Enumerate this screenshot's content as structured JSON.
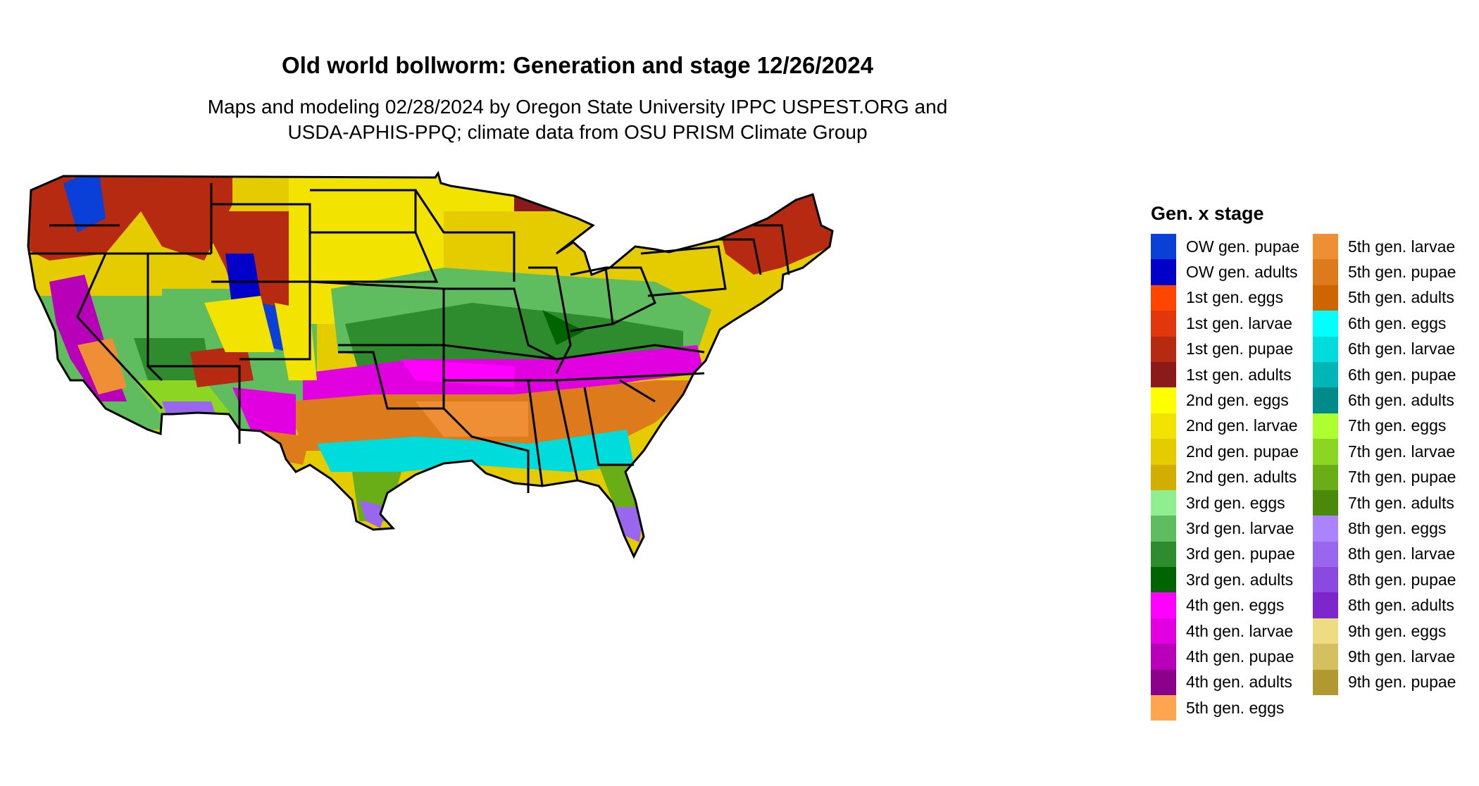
{
  "title": "Old world bollworm: Generation and stage 12/26/2024",
  "subtitle_line1": "Maps and modeling 02/28/2024 by Oregon State University IPPC USPEST.ORG and",
  "subtitle_line2": "USDA-APHIS-PPQ; climate data from OSU PRISM Climate Group",
  "legend": {
    "title": "Gen. x stage",
    "items": [
      {
        "label": "OW gen. pupae",
        "color": "#0a3fd8"
      },
      {
        "label": "OW gen. adults",
        "color": "#0000c8"
      },
      {
        "label": "1st gen. eggs",
        "color": "#ff4500"
      },
      {
        "label": "1st gen. larvae",
        "color": "#e0380c"
      },
      {
        "label": "1st gen. pupae",
        "color": "#b52a10"
      },
      {
        "label": "1st gen. adults",
        "color": "#8b1a1a"
      },
      {
        "label": "2nd gen. eggs",
        "color": "#ffff00"
      },
      {
        "label": "2nd gen. larvae",
        "color": "#f2e400"
      },
      {
        "label": "2nd gen. pupae",
        "color": "#e4cc00"
      },
      {
        "label": "2nd gen. adults",
        "color": "#d1ae00"
      },
      {
        "label": "3rd gen. eggs",
        "color": "#90ee90"
      },
      {
        "label": "3rd gen. larvae",
        "color": "#5fbd5f"
      },
      {
        "label": "3rd gen. pupae",
        "color": "#2e8b2e"
      },
      {
        "label": "3rd gen. adults",
        "color": "#006400"
      },
      {
        "label": "4th gen. eggs",
        "color": "#ff00ff"
      },
      {
        "label": "4th gen. larvae",
        "color": "#e000e0"
      },
      {
        "label": "4th gen. pupae",
        "color": "#b800b8"
      },
      {
        "label": "4th gen. adults",
        "color": "#8b008b"
      },
      {
        "label": "5th gen. eggs",
        "color": "#ffa54f"
      },
      {
        "label": "5th gen. larvae",
        "color": "#ee8f35"
      },
      {
        "label": "5th gen. pupae",
        "color": "#dd7a1c"
      },
      {
        "label": "5th gen. adults",
        "color": "#cd6600"
      },
      {
        "label": "6th gen. eggs",
        "color": "#00ffff"
      },
      {
        "label": "6th gen. larvae",
        "color": "#00dcdc"
      },
      {
        "label": "6th gen. pupae",
        "color": "#00b5b5"
      },
      {
        "label": "6th gen. adults",
        "color": "#008b8b"
      },
      {
        "label": "7th gen. eggs",
        "color": "#adff2f"
      },
      {
        "label": "7th gen. larvae",
        "color": "#8cd623"
      },
      {
        "label": "7th gen. pupae",
        "color": "#6aae17"
      },
      {
        "label": "7th gen. adults",
        "color": "#4a8a08"
      },
      {
        "label": "8th gen. eggs",
        "color": "#ab82ff"
      },
      {
        "label": "8th gen. larvae",
        "color": "#9966ee"
      },
      {
        "label": "8th gen. pupae",
        "color": "#8a4ae0"
      },
      {
        "label": "8th gen. adults",
        "color": "#7d26cd"
      },
      {
        "label": "9th gen. eggs",
        "color": "#eedc82"
      },
      {
        "label": "9th gen. larvae",
        "color": "#d4c060"
      },
      {
        "label": "9th gen. pupae",
        "color": "#b09a30"
      }
    ]
  }
}
